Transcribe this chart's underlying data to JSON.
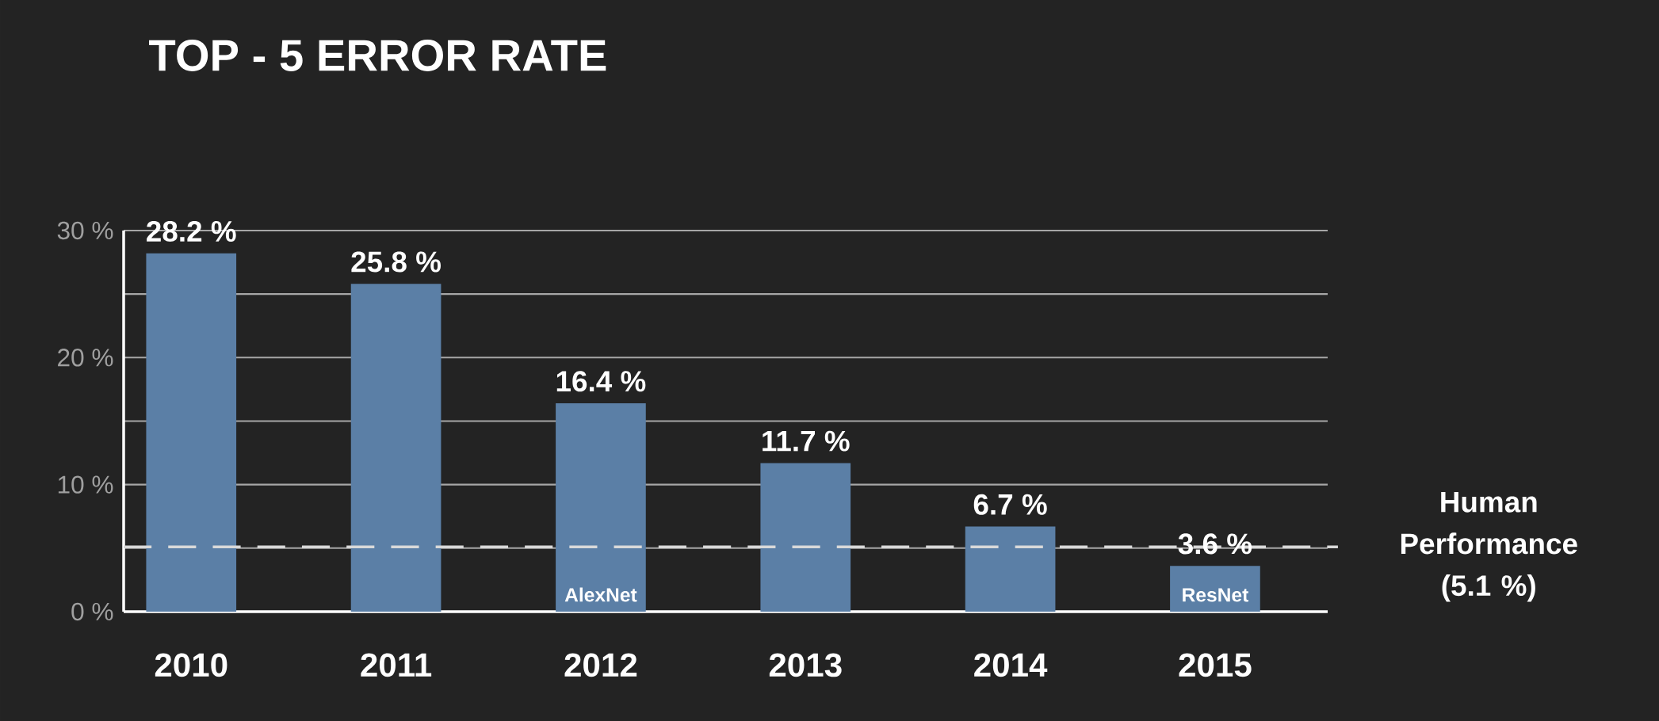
{
  "chart_data": {
    "type": "bar",
    "title": "TOP - 5 ERROR RATE",
    "categories": [
      "2010",
      "2011",
      "2012",
      "2013",
      "2014",
      "2015"
    ],
    "values": [
      28.2,
      25.8,
      16.4,
      11.7,
      6.7,
      3.6
    ],
    "value_labels": [
      "28.2 %",
      "25.8 %",
      "16.4 %",
      "11.7 %",
      "6.7 %",
      "3.6 %"
    ],
    "color": "#5b7fa6",
    "ylim": [
      0,
      30
    ],
    "yticks": [
      {
        "value": 0,
        "label": "0 %"
      },
      {
        "value": 5,
        "label": null
      },
      {
        "value": 10,
        "label": "10 %"
      },
      {
        "value": 15,
        "label": null
      },
      {
        "value": 20,
        "label": "20 %"
      },
      {
        "value": 25,
        "label": null
      },
      {
        "value": 30,
        "label": "30 %"
      }
    ],
    "grid": "y",
    "ref_lines": [
      {
        "axis": "y",
        "value": 5.1,
        "label": "Human Performance (5.1 %)",
        "color": "#d9d9d9",
        "line_style": "dashed"
      }
    ],
    "annotations": [
      "AlexNet",
      "ResNet"
    ]
  }
}
